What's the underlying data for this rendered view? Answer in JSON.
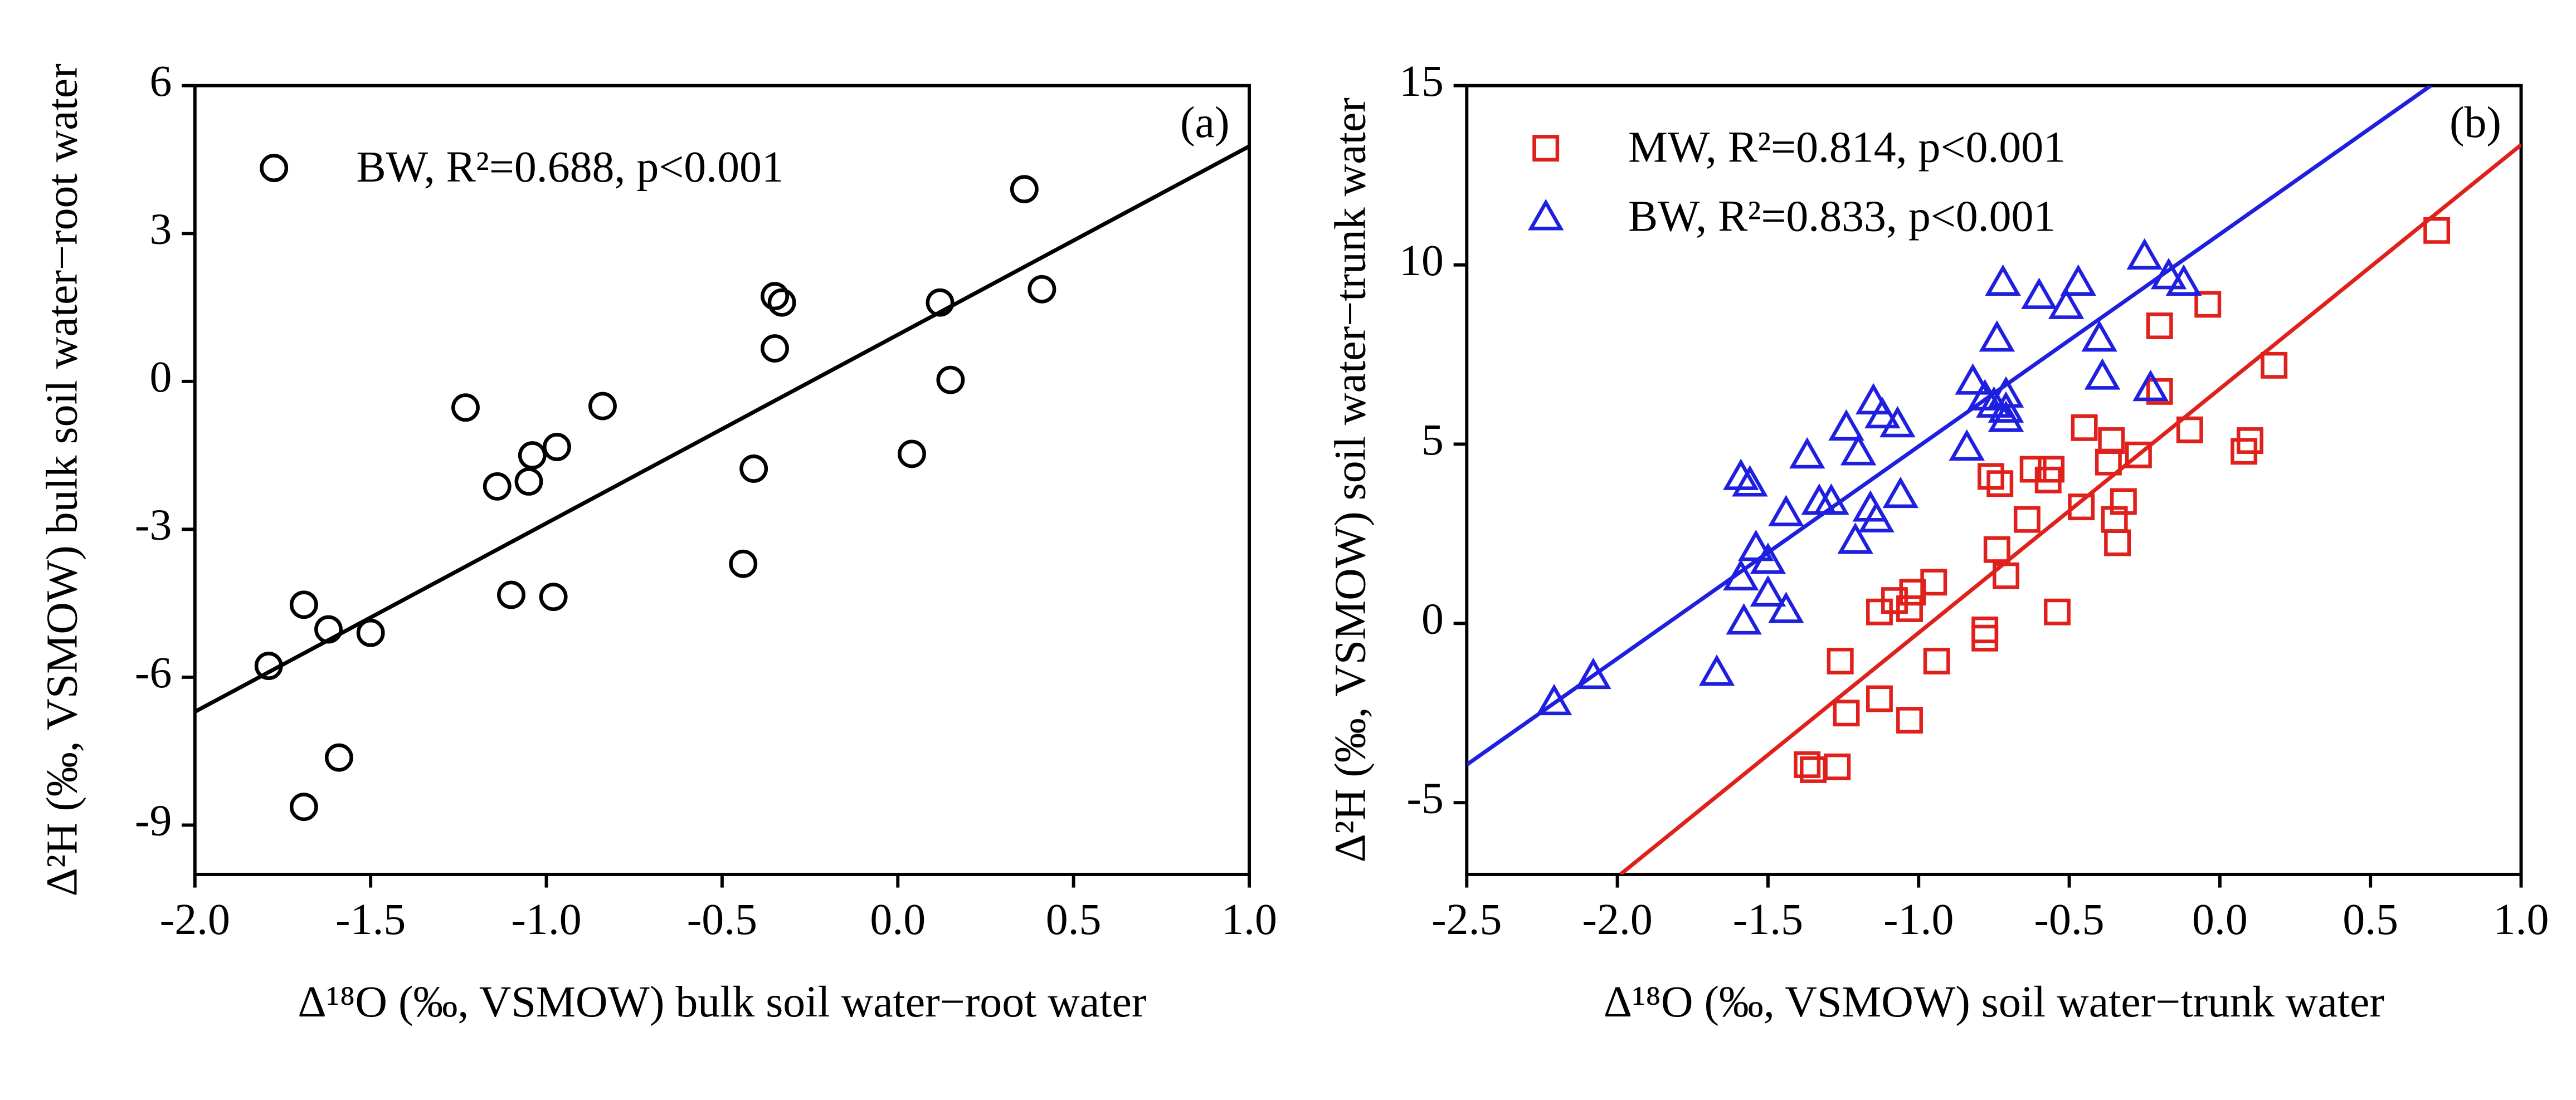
{
  "chart_data": [
    {
      "type": "scatter",
      "annotation": "(a)",
      "x_label": "Δ¹⁸O (‰, VSMOW) bulk soil water−root water",
      "y_label": "Δ²H (‰, VSMOW) bulk soil water−root water",
      "xlim": [
        -2.0,
        1.0
      ],
      "ylim": [
        -10,
        6
      ],
      "xticks": [
        {
          "value": -2.0,
          "label": "-2.0"
        },
        -1.5,
        {
          "value": -1.0,
          "label": "-1.0"
        },
        -0.5,
        {
          "value": 0.0,
          "label": "0.0"
        },
        0.5,
        {
          "value": 1.0,
          "label": "1.0"
        }
      ],
      "yticks": [
        -9,
        -6,
        -3,
        0,
        3,
        6
      ],
      "legend": "upper left",
      "series": [
        {
          "name": "BW, R²=0.688, p<0.001",
          "color": "#000000",
          "marker": "circle",
          "x": [
            0.36,
            -0.35,
            -0.33,
            0.12,
            0.41,
            -0.35,
            0.15,
            0.04,
            -1.23,
            -0.84,
            -0.97,
            -1.04,
            -1.14,
            -1.05,
            -0.41,
            -0.44,
            -1.1,
            -0.98,
            -1.69,
            -1.62,
            -1.5,
            -1.79,
            -1.59,
            -1.69
          ],
          "values": [
            3.9,
            1.73,
            1.6,
            1.6,
            1.87,
            0.67,
            0.03,
            -1.47,
            -0.53,
            -0.5,
            -1.33,
            -1.5,
            -2.13,
            -2.03,
            -1.77,
            -3.7,
            -4.33,
            -4.37,
            -4.53,
            -5.03,
            -5.1,
            -5.77,
            -7.63,
            -8.63
          ],
          "fit": {
            "x": [
              -2.0,
              1.0
            ],
            "y": [
              -6.7,
              4.77
            ]
          }
        }
      ]
    },
    {
      "type": "scatter",
      "annotation": "(b)",
      "x_label": "Δ¹⁸O (‰, VSMOW) soil water−trunk water",
      "y_label": "Δ²H (‰, VSMOW) soil water−trunk water",
      "xlim": [
        -2.5,
        1.0
      ],
      "ylim": [
        -7,
        15
      ],
      "xticks": [
        -2.5,
        {
          "value": -2.0,
          "label": "-2.0"
        },
        -1.5,
        {
          "value": -1.0,
          "label": "-1.0"
        },
        -0.5,
        {
          "value": 0.0,
          "label": "0.0"
        },
        0.5,
        {
          "value": 1.0,
          "label": "1.0"
        }
      ],
      "yticks": [
        -5,
        0,
        5,
        10,
        15
      ],
      "legend": "upper left",
      "series": [
        {
          "name": "MW, R²=0.814, p<0.001",
          "color": "#e0201b",
          "marker": "square",
          "x": [
            0.72,
            -0.04,
            -0.2,
            0.18,
            -0.2,
            -0.45,
            0.1,
            0.08,
            -0.1,
            -0.27,
            -0.36,
            -0.37,
            -0.56,
            -0.57,
            -0.62,
            -0.76,
            -0.73,
            -0.32,
            -0.35,
            -0.34,
            -0.46,
            -0.64,
            -0.74,
            -0.71,
            -0.54,
            -0.95,
            -1.02,
            -1.08,
            -1.03,
            -1.13,
            -0.78,
            -0.78,
            -0.94,
            -1.26,
            -1.13,
            -1.24,
            -1.03,
            -1.37,
            -1.35,
            -1.27
          ],
          "values": [
            10.96,
            8.9,
            8.3,
            7.2,
            6.47,
            5.46,
            5.1,
            4.8,
            5.4,
            4.7,
            5.1,
            4.5,
            4.3,
            4.0,
            4.3,
            4.1,
            3.9,
            3.4,
            2.9,
            2.25,
            3.25,
            2.9,
            2.06,
            1.33,
            0.32,
            1.15,
            0.87,
            0.64,
            0.41,
            0.32,
            -0.18,
            -0.41,
            -1.05,
            -1.05,
            -2.1,
            -2.5,
            -2.7,
            -3.94,
            -4.08,
            -4.0
          ],
          "fit": {
            "x": [
              -1.99,
              1.0
            ],
            "y": [
              -7,
              13.35
            ]
          }
        },
        {
          "name": "BW, R²=0.833, p<0.001",
          "color": "#1f1fe0",
          "marker": "triangle",
          "x": [
            -2.08,
            -2.21,
            -1.67,
            -1.58,
            -1.44,
            -1.5,
            -1.59,
            -1.5,
            -1.54,
            -1.59,
            -1.56,
            -1.37,
            -1.2,
            -1.24,
            -1.44,
            -1.33,
            -1.29,
            -1.16,
            -1.21,
            -1.06,
            -1.14,
            -1.15,
            -1.12,
            -1.07,
            -0.84,
            -0.82,
            -0.78,
            -0.75,
            -0.71,
            -0.71,
            -0.74,
            -0.72,
            -0.71,
            -0.6,
            -0.51,
            -0.47,
            -0.4,
            -0.39,
            -0.23,
            -0.25,
            -0.17,
            -0.12
          ],
          "values": [
            -1.47,
            -2.2,
            -1.38,
            0.05,
            0.37,
            0.83,
            1.28,
            1.74,
            2.1,
            4.08,
            3.9,
            4.68,
            4.77,
            5.46,
            3.07,
            3.39,
            3.39,
            3.2,
            2.3,
            3.58,
            2.9,
            6.19,
            5.8,
            5.55,
            4.9,
            6.74,
            6.3,
            6.1,
            5.96,
            5.7,
            7.94,
            9.5,
            6.38,
            9.13,
            8.85,
            9.5,
            7.94,
            6.88,
            6.56,
            10.23,
            9.68,
            9.5
          ],
          "fit": {
            "x": [
              -2.5,
              0.7
            ],
            "y": [
              -3.94,
              15
            ]
          }
        }
      ]
    }
  ]
}
